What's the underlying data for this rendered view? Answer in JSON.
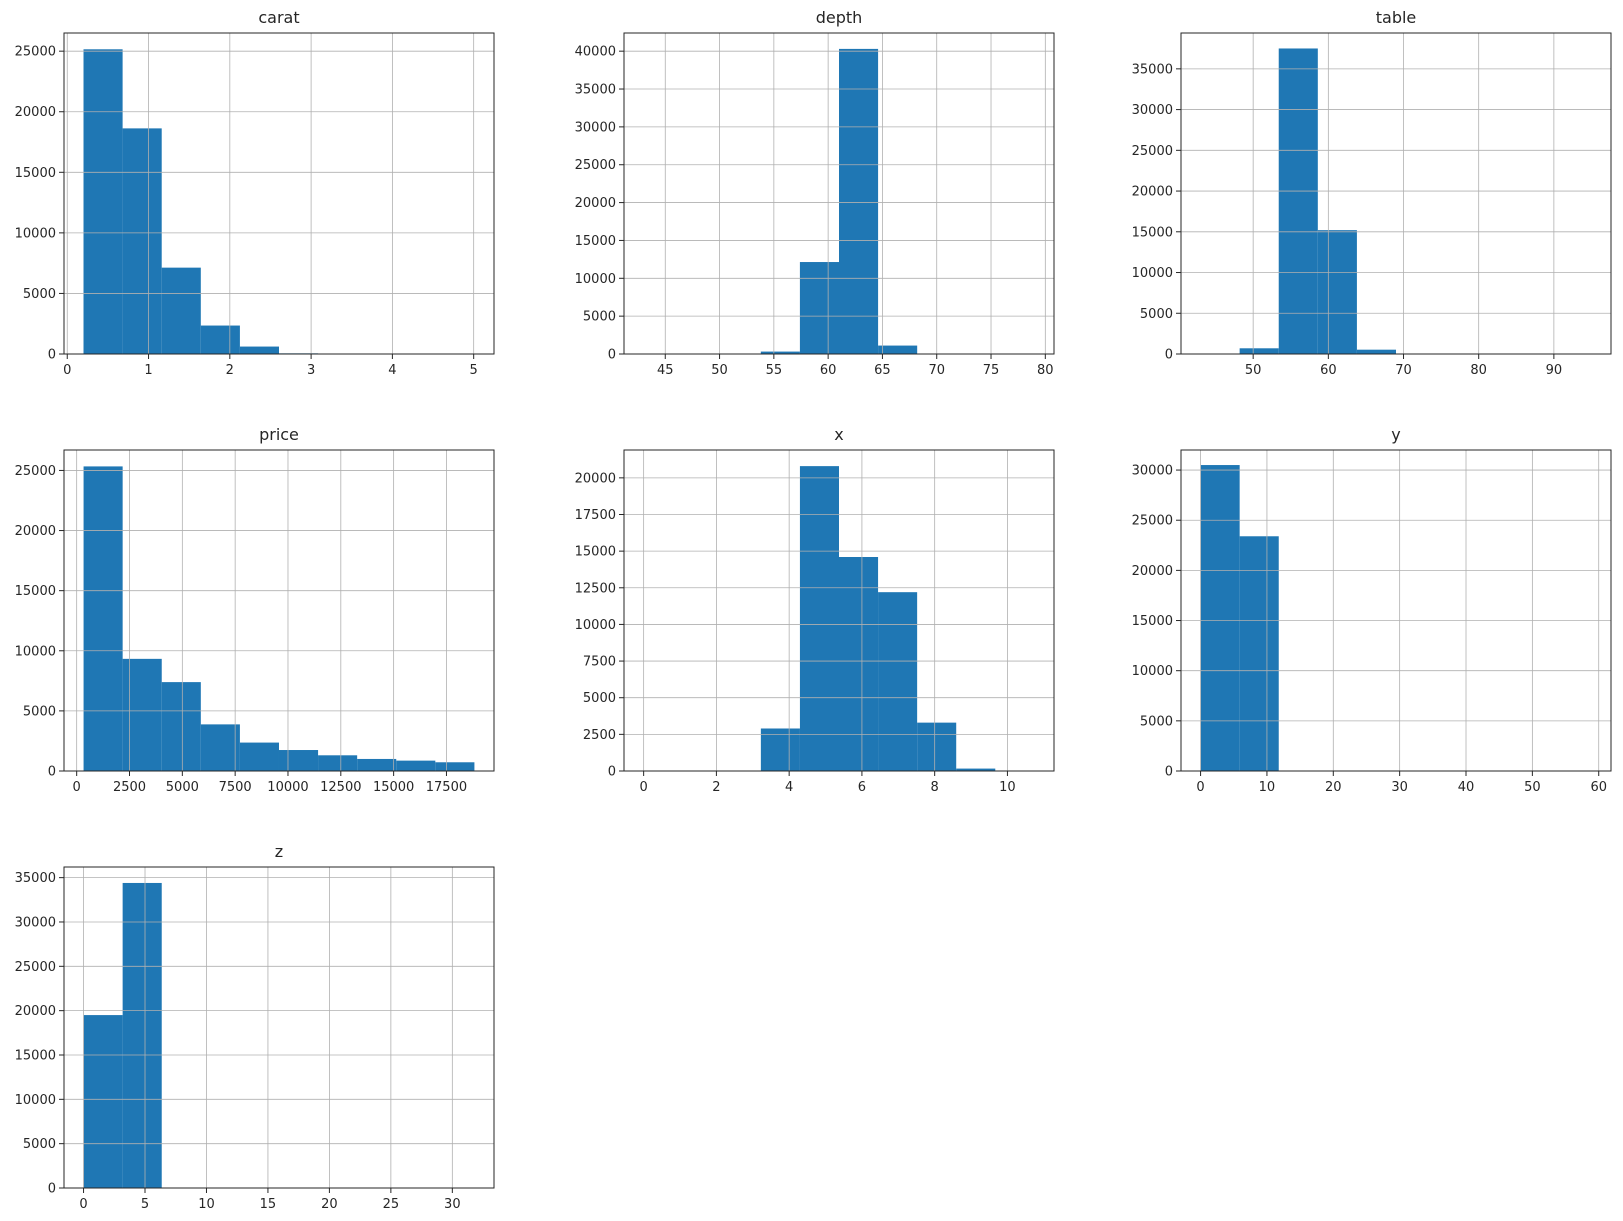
{
  "figure": {
    "bar_color": "#1f77b4",
    "grid": true
  },
  "chart_data": [
    {
      "type": "bar",
      "title": "carat",
      "xlim": [
        -0.04,
        5.25
      ],
      "ylim": [
        0,
        26500
      ],
      "xticks": [
        0,
        1,
        2,
        3,
        4,
        5
      ],
      "yticks": [
        0,
        5000,
        10000,
        15000,
        20000,
        25000
      ],
      "bins": [
        0.2,
        0.681,
        1.162,
        1.643,
        2.124,
        2.605,
        3.086,
        3.567,
        4.048,
        4.529,
        5.01
      ],
      "counts": [
        25155,
        18626,
        7129,
        2349,
        614,
        54,
        14,
        5,
        0,
        1
      ]
    },
    {
      "type": "bar",
      "title": "depth",
      "xlim": [
        41.2,
        80.8
      ],
      "ylim": [
        0,
        42400
      ],
      "xticks": [
        45,
        50,
        55,
        60,
        65,
        70,
        75,
        80
      ],
      "yticks": [
        0,
        5000,
        10000,
        15000,
        20000,
        25000,
        30000,
        35000,
        40000
      ],
      "bins": [
        43,
        46.6,
        50.2,
        53.8,
        57.4,
        61,
        64.6,
        68.2,
        71.8,
        75.4,
        79
      ],
      "counts": [
        3,
        7,
        17,
        320,
        12148,
        40300,
        1113,
        24,
        5,
        3
      ]
    },
    {
      "type": "bar",
      "title": "table",
      "xlim": [
        40.4,
        97.6
      ],
      "ylim": [
        0,
        39400
      ],
      "xticks": [
        50,
        60,
        70,
        80,
        90
      ],
      "yticks": [
        0,
        5000,
        10000,
        15000,
        20000,
        25000,
        30000,
        35000
      ],
      "bins": [
        43,
        48.2,
        53.4,
        58.6,
        63.8,
        69,
        74.2,
        79.4,
        84.6,
        89.8,
        95
      ],
      "counts": [
        3,
        700,
        37500,
        15200,
        530,
        5,
        1,
        0,
        0,
        1
      ]
    },
    {
      "type": "bar",
      "title": "price",
      "xlim": [
        -600,
        19750
      ],
      "ylim": [
        0,
        26700
      ],
      "xticks": [
        0,
        2500,
        5000,
        7500,
        10000,
        12500,
        15000,
        17500
      ],
      "yticks": [
        0,
        5000,
        10000,
        15000,
        20000,
        25000
      ],
      "bins": [
        326,
        2175.7,
        4025.4,
        5875.1,
        7724.8,
        9574.5,
        11424.2,
        13273.9,
        15123.6,
        16973.3,
        18823
      ],
      "counts": [
        25335,
        9328,
        7393,
        3878,
        2364,
        1745,
        1306,
        1002,
        863,
        726
      ]
    },
    {
      "type": "bar",
      "title": "x",
      "xlim": [
        -0.54,
        11.28
      ],
      "ylim": [
        0,
        21900
      ],
      "xticks": [
        0,
        2,
        4,
        6,
        8,
        10
      ],
      "yticks": [
        0,
        2500,
        5000,
        7500,
        10000,
        12500,
        15000,
        17500,
        20000
      ],
      "bins": [
        0,
        1.074,
        2.148,
        3.222,
        4.296,
        5.37,
        6.444,
        7.518,
        8.592,
        9.666,
        10.74
      ],
      "counts": [
        8,
        0,
        0,
        2900,
        20800,
        14600,
        12200,
        3300,
        165,
        9
      ]
    },
    {
      "type": "bar",
      "title": "y",
      "xlim": [
        -2.95,
        61.85
      ],
      "ylim": [
        0,
        32000
      ],
      "xticks": [
        0,
        10,
        20,
        30,
        40,
        50,
        60
      ],
      "yticks": [
        0,
        5000,
        10000,
        15000,
        20000,
        25000,
        30000
      ],
      "bins": [
        0,
        5.89,
        11.78,
        17.67,
        23.56,
        29.45,
        35.34,
        41.23,
        47.12,
        53.01,
        58.9
      ],
      "counts": [
        30500,
        23400,
        0,
        0,
        0,
        1,
        0,
        0,
        0,
        1
      ]
    },
    {
      "type": "bar",
      "title": "z",
      "xlim": [
        -1.59,
        33.39
      ],
      "ylim": [
        0,
        36200
      ],
      "xticks": [
        0,
        5,
        10,
        15,
        20,
        25,
        30
      ],
      "yticks": [
        0,
        5000,
        10000,
        15000,
        20000,
        25000,
        30000,
        35000
      ],
      "bins": [
        0,
        3.18,
        6.36,
        9.54,
        12.72,
        15.9,
        19.08,
        22.26,
        25.44,
        28.62,
        31.8
      ],
      "counts": [
        19500,
        34400,
        0,
        0,
        0,
        0,
        0,
        0,
        0,
        1
      ]
    }
  ]
}
